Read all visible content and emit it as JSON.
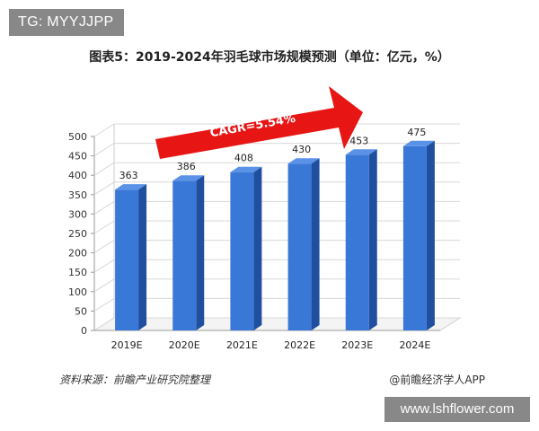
{
  "watermark_top": "TG: MYYJJPP",
  "watermark_bottom": "www.lshflower.com",
  "source_left": "资料来源：前瞻产业研究院整理",
  "source_right": "@前瞻经济学人APP",
  "colors": {
    "bar_front": "#3a78d8",
    "bar_side": "#1f4f9e",
    "bar_top": "#5a92e8",
    "arrow": "#e81515",
    "text": "#222222"
  },
  "chart_data": {
    "type": "bar",
    "title": "图表5：2019-2024年羽毛球市场规模预测（单位：亿元，%）",
    "categories": [
      "2019E",
      "2020E",
      "2021E",
      "2022E",
      "2023E",
      "2024E"
    ],
    "values": [
      363,
      386,
      408,
      430,
      453,
      475
    ],
    "data_labels": [
      "363",
      "386",
      "408",
      "430",
      "453",
      "475"
    ],
    "ylim": [
      0,
      500
    ],
    "yticks": [
      0,
      50,
      100,
      150,
      200,
      250,
      300,
      350,
      400,
      450,
      500
    ],
    "grid": true,
    "annotation": "CAGR=5.54%",
    "xlabel": "",
    "ylabel": ""
  }
}
